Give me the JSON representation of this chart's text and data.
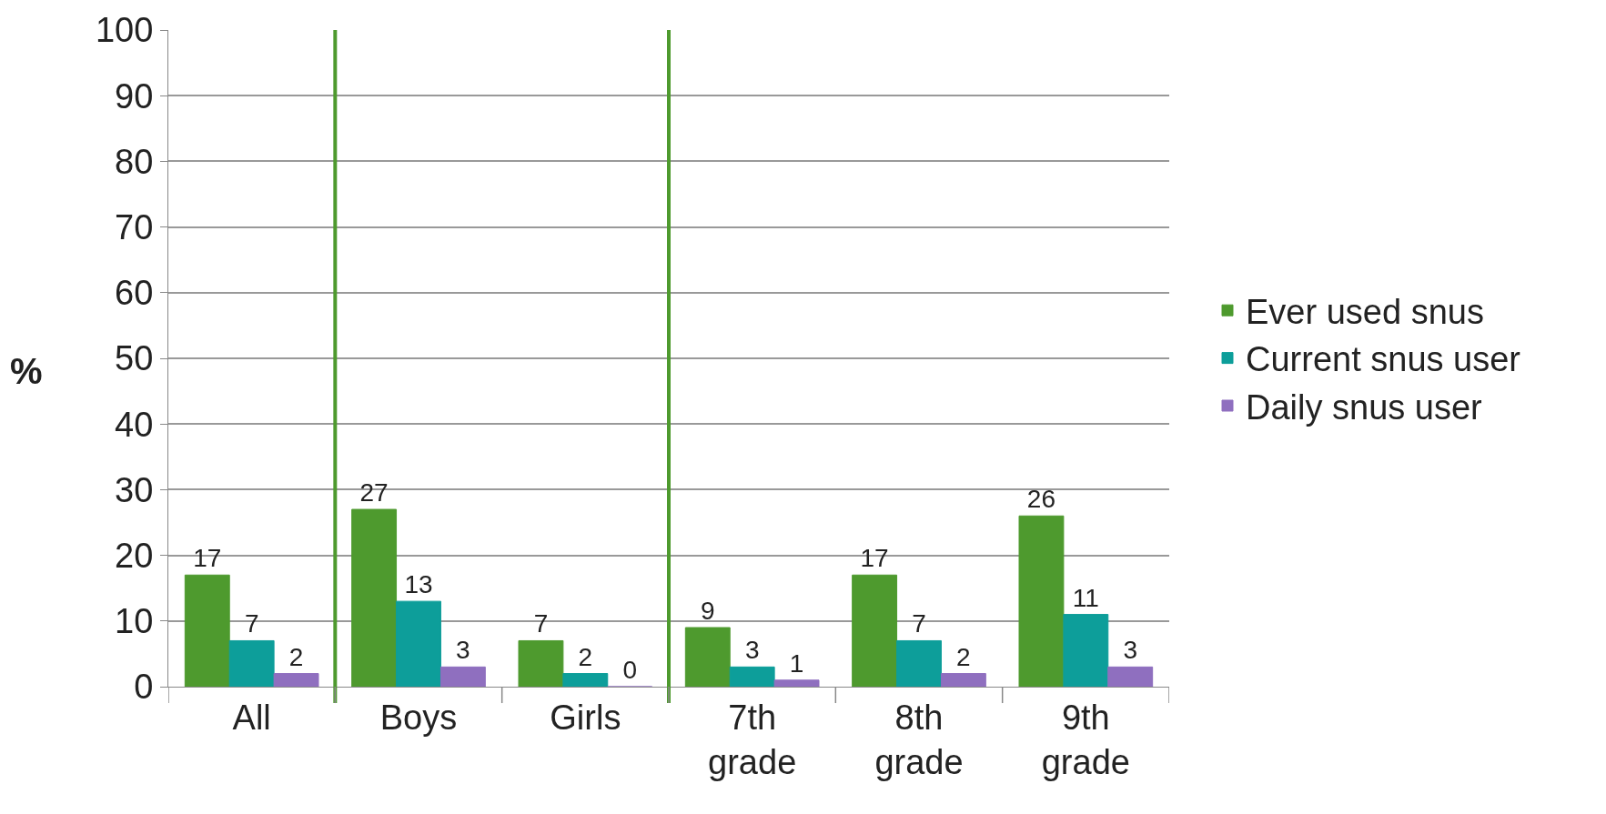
{
  "chart_data": {
    "type": "bar",
    "ylabel": "%",
    "categories": [
      "All",
      "Boys",
      "Girls",
      "7th grade",
      "8th grade",
      "9th grade"
    ],
    "series": [
      {
        "name": "Ever used snus",
        "color": "#4e9a2e",
        "values": [
          17,
          27,
          7,
          9,
          17,
          26
        ]
      },
      {
        "name": "Current snus user",
        "color": "#0d9e9a",
        "values": [
          7,
          13,
          2,
          3,
          7,
          11
        ]
      },
      {
        "name": "Daily snus user",
        "color": "#8f6fbf",
        "values": [
          2,
          3,
          0,
          1,
          2,
          3
        ]
      }
    ],
    "ylim": [
      0,
      100
    ],
    "yticks": [
      0,
      10,
      20,
      30,
      40,
      50,
      60,
      70,
      80,
      90,
      100
    ],
    "grid": "y",
    "legend": "right",
    "data_labels": true
  }
}
